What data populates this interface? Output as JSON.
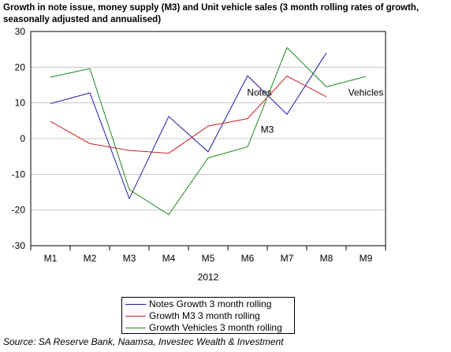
{
  "title": "Growth in note issue, money supply (M3) and Unit vehicle sales (3 month rolling rates of growth, seasonally adjusted and annualised)",
  "source": "Source: SA Reserve Bank, Naamsa, Investec Wealth & Investment",
  "chart_data": {
    "type": "line",
    "categories": [
      "M1",
      "M2",
      "M3",
      "M4",
      "M5",
      "M6",
      "M7",
      "M8",
      "M9"
    ],
    "xlabel": "2012",
    "ylabel": "",
    "ylim": [
      -30,
      30
    ],
    "yticks": [
      "30",
      "20",
      "10",
      "0",
      "-10",
      "-20",
      "-30"
    ],
    "grid": true,
    "legend_position": "bottom-center",
    "series": [
      {
        "name": "Notes Growth 3 month rolling",
        "label": "Notes",
        "color": "#1a1aa8",
        "values": [
          9.8,
          12.8,
          -16.8,
          6.2,
          -3.7,
          17.6,
          6.8,
          24.0,
          null
        ]
      },
      {
        "name": "Growth M3 3 month rolling",
        "label": "M3",
        "color": "#cc2020",
        "values": [
          4.8,
          -1.4,
          -3.3,
          -4.1,
          3.5,
          5.6,
          17.5,
          11.7,
          null
        ]
      },
      {
        "name": "Growth Vehicles 3 month rolling",
        "label": "Vehicles",
        "color": "#1f8a1f",
        "values": [
          17.2,
          19.6,
          -14.3,
          -21.3,
          -5.4,
          -2.3,
          25.5,
          14.5,
          17.4
        ]
      }
    ]
  }
}
